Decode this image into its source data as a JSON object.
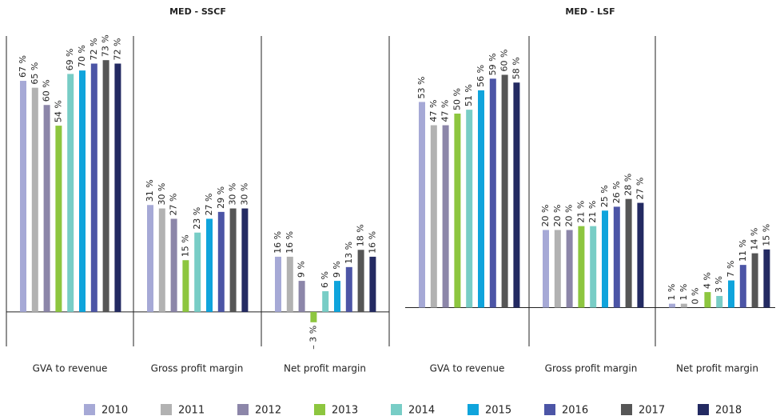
{
  "chart_data": [
    {
      "type": "bar",
      "title": "MED - SSCF",
      "categories": [
        "GVA to revenue",
        "Gross profit margin",
        "Net profit margin"
      ],
      "ylim": [
        -10,
        80
      ],
      "series": [
        {
          "name": "2010",
          "color": "#a6a9d6",
          "values": [
            67,
            31,
            16
          ],
          "value_labels": [
            "67 %",
            "31 %",
            "16 %"
          ]
        },
        {
          "name": "2011",
          "color": "#b2b2b2",
          "values": [
            65,
            30,
            16
          ],
          "value_labels": [
            "65 %",
            "30 %",
            "16 %"
          ]
        },
        {
          "name": "2012",
          "color": "#8c86a9",
          "values": [
            60,
            27,
            9
          ],
          "value_labels": [
            "60 %",
            "27 %",
            "9 %"
          ]
        },
        {
          "name": "2013",
          "color": "#8dc63f",
          "values": [
            54,
            15,
            -3
          ],
          "value_labels": [
            "54 %",
            "15 %",
            "– 3 %"
          ]
        },
        {
          "name": "2014",
          "color": "#78cdc6",
          "values": [
            69,
            23,
            6
          ],
          "value_labels": [
            "69 %",
            "23 %",
            "6 %"
          ]
        },
        {
          "name": "2015",
          "color": "#0fa4dc",
          "values": [
            70,
            27,
            9
          ],
          "value_labels": [
            "70 %",
            "27 %",
            "9 %"
          ]
        },
        {
          "name": "2016",
          "color": "#4c55a6",
          "values": [
            72,
            29,
            13
          ],
          "value_labels": [
            "72 %",
            "29 %",
            "13 %"
          ]
        },
        {
          "name": "2017",
          "color": "#565656",
          "values": [
            73,
            30,
            18
          ],
          "value_labels": [
            "73 %",
            "30 %",
            "18 %"
          ]
        },
        {
          "name": "2018",
          "color": "#232a62",
          "values": [
            72,
            30,
            16
          ],
          "value_labels": [
            "72 %",
            "30 %",
            "16 %"
          ]
        }
      ]
    },
    {
      "type": "bar",
      "title": "MED - LSF",
      "categories": [
        "GVA to revenue",
        "Gross profit margin",
        "Net profit margin"
      ],
      "ylim": [
        -10,
        70
      ],
      "series": [
        {
          "values": [
            53,
            20,
            1
          ],
          "value_labels": [
            "53 %",
            "20 %",
            "1 %"
          ]
        },
        {
          "values": [
            47,
            20,
            1
          ],
          "value_labels": [
            "47 %",
            "20 %",
            "1 %"
          ]
        },
        {
          "values": [
            47,
            20,
            0
          ],
          "value_labels": [
            "47 %",
            "20 %",
            "0 %"
          ]
        },
        {
          "values": [
            50,
            21,
            4
          ],
          "value_labels": [
            "50 %",
            "21 %",
            "4 %"
          ]
        },
        {
          "values": [
            51,
            21,
            3
          ],
          "value_labels": [
            "51 %",
            "21 %",
            "3 %"
          ]
        },
        {
          "values": [
            56,
            25,
            7
          ],
          "value_labels": [
            "56 %",
            "25 %",
            "7 %"
          ]
        },
        {
          "values": [
            59,
            26,
            11
          ],
          "value_labels": [
            "59 %",
            "26 %",
            "11 %"
          ]
        },
        {
          "values": [
            60,
            28,
            14
          ],
          "value_labels": [
            "60 %",
            "28 %",
            "14 %"
          ]
        },
        {
          "values": [
            58,
            27,
            15
          ],
          "value_labels": [
            "58 %",
            "27 %",
            "15 %"
          ]
        }
      ]
    }
  ]
}
